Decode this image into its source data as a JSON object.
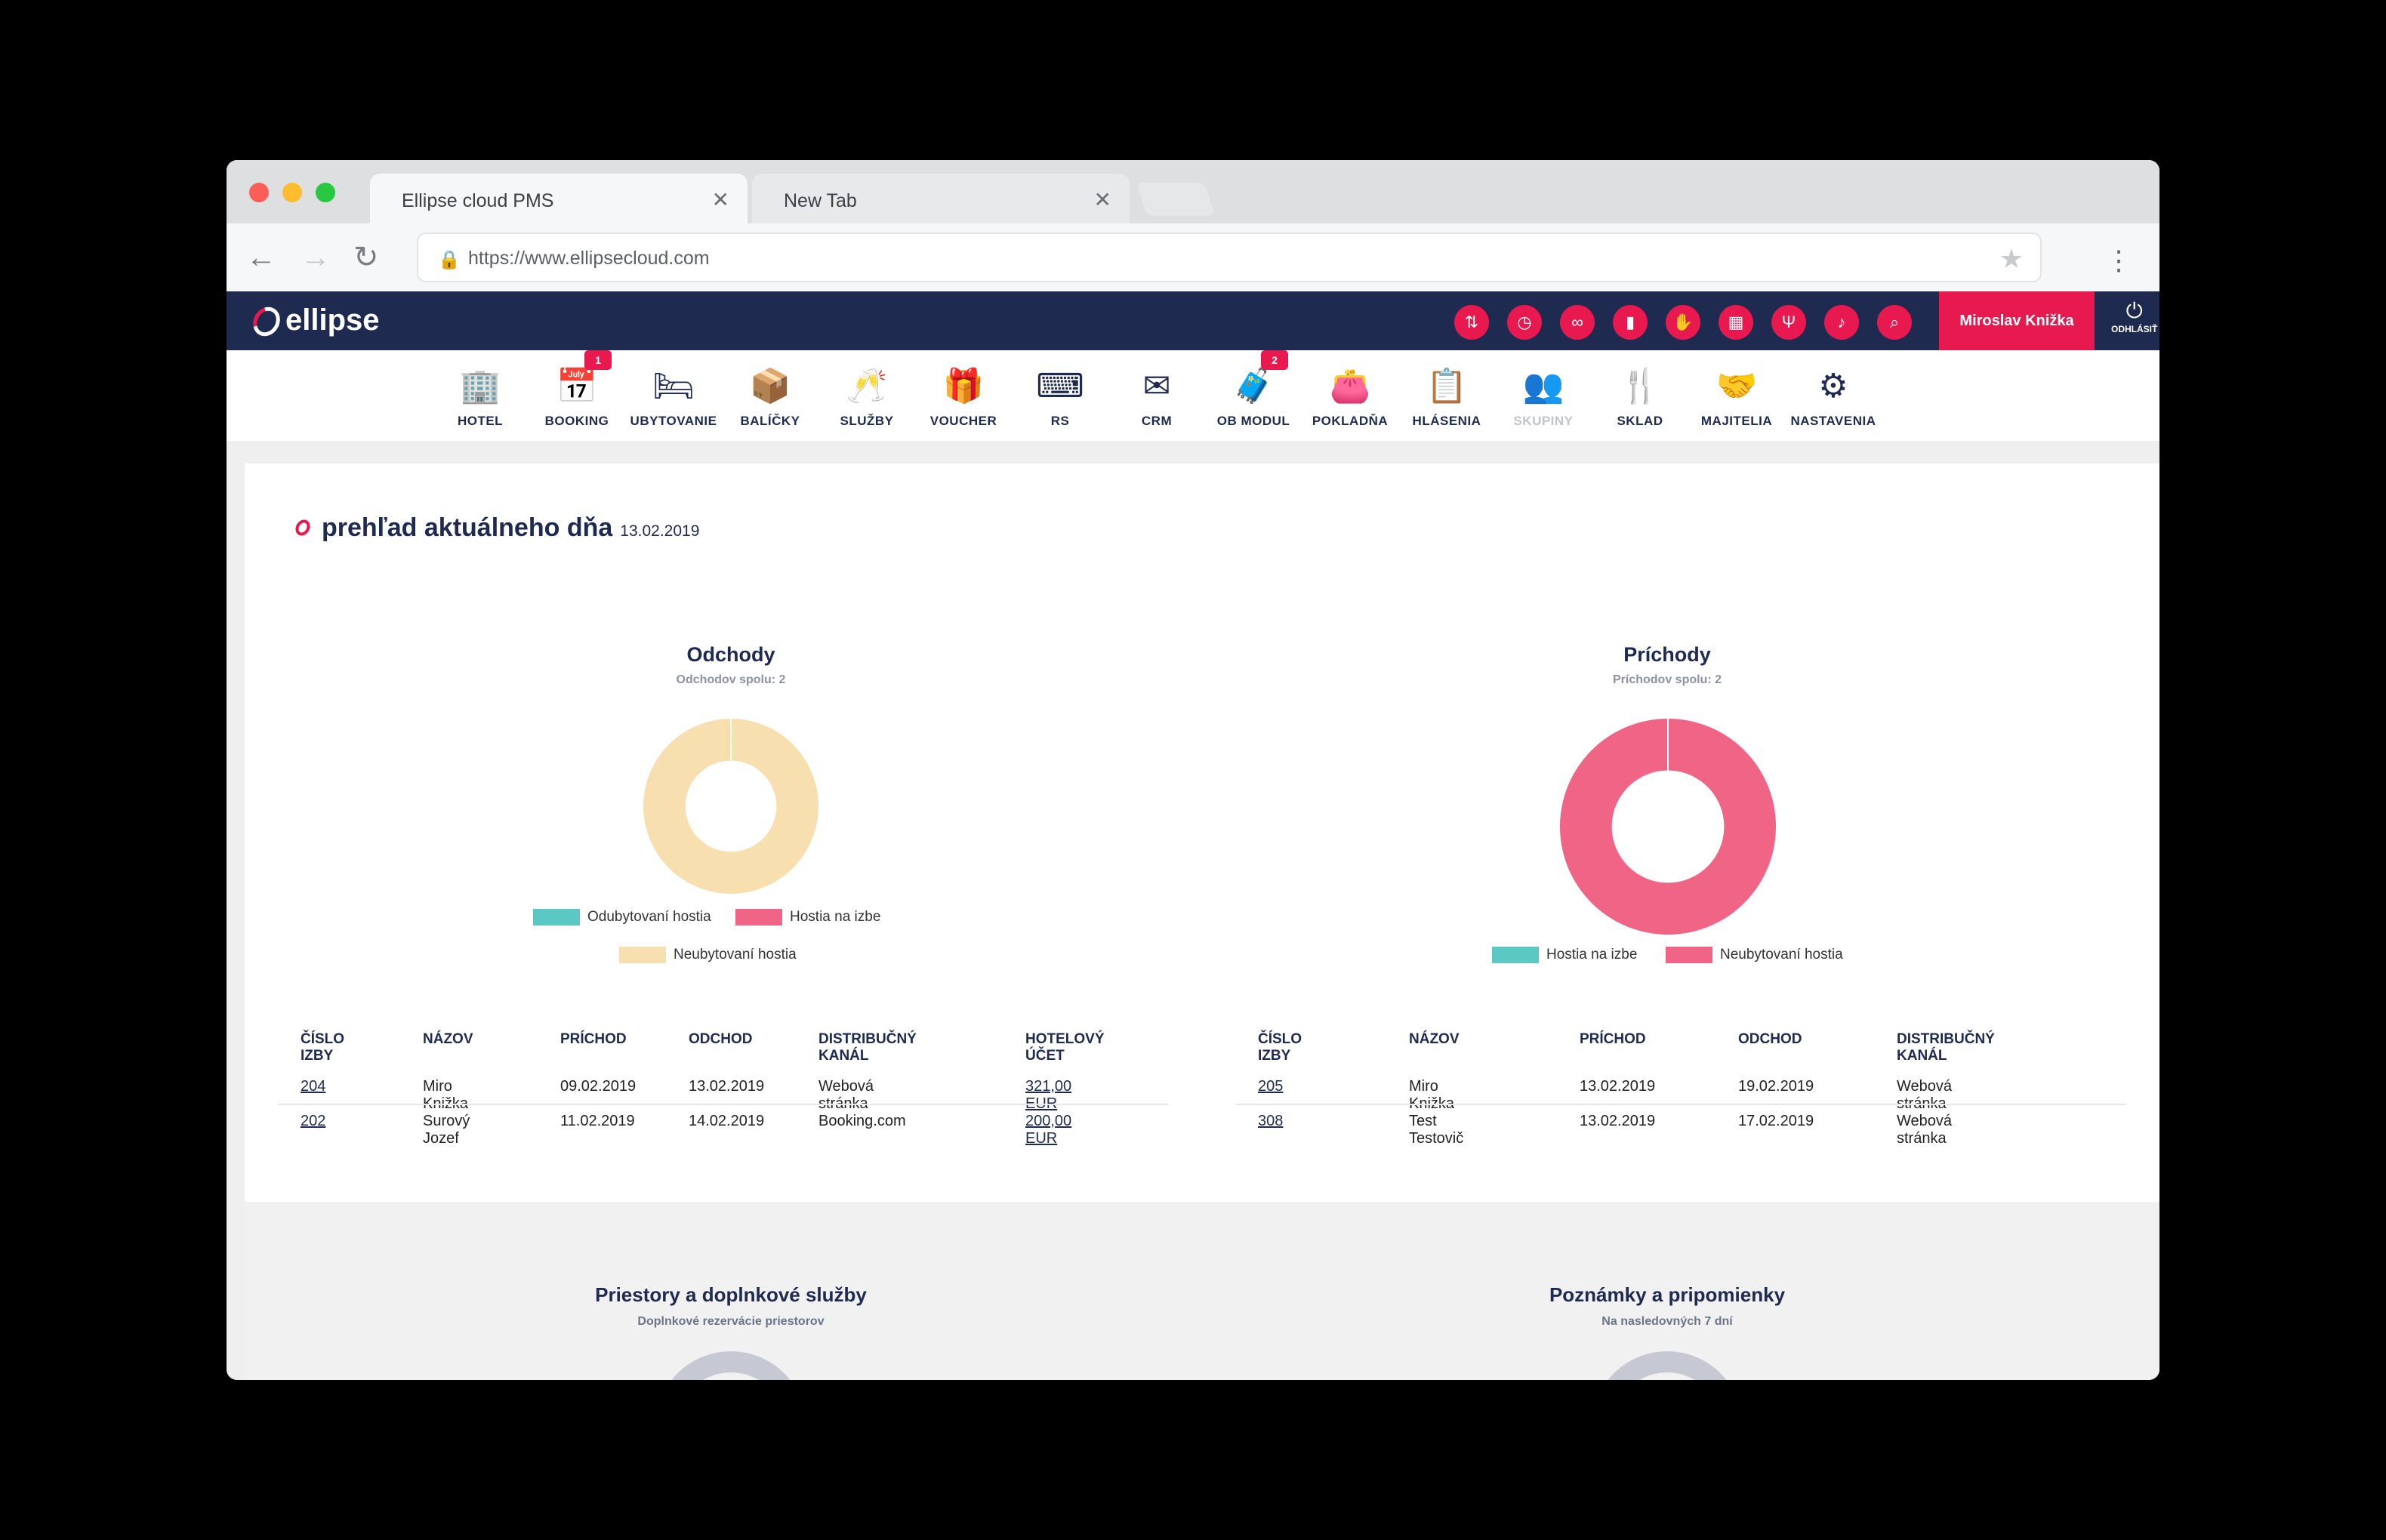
{
  "browser": {
    "tabs": [
      {
        "label": "Ellipse cloud PMS"
      },
      {
        "label": "New Tab"
      }
    ],
    "url": "https://www.ellipsecloud.com"
  },
  "app": {
    "logo": "ellipse",
    "user": "Miroslav Knižka",
    "logout": "ODHLÁSIŤ",
    "colors": {
      "brand": "#1e2a50",
      "accent": "#e8194f",
      "teal": "#5bc8c4",
      "peach": "#f8dfb0"
    }
  },
  "modules": [
    {
      "label": "HOTEL",
      "icon": "hotel-icon",
      "glyph": "🏢"
    },
    {
      "label": "BOOKING",
      "icon": "calendar-icon",
      "glyph": "📅",
      "badge": "1"
    },
    {
      "label": "UBYTOVANIE",
      "icon": "bed-icon",
      "glyph": "🛏"
    },
    {
      "label": "BALÍČKY",
      "icon": "package-icon",
      "glyph": "📦"
    },
    {
      "label": "SLUŽBY",
      "icon": "cheers-icon",
      "glyph": "🥂"
    },
    {
      "label": "VOUCHER",
      "icon": "gift-icon",
      "glyph": "🎁"
    },
    {
      "label": "RS",
      "icon": "code-window-icon",
      "glyph": "⌨"
    },
    {
      "label": "CRM",
      "icon": "envelope-icon",
      "glyph": "✉"
    },
    {
      "label": "OB MODUL",
      "icon": "traveler-icon",
      "glyph": "🧳",
      "badge": "2"
    },
    {
      "label": "POKLADŇA",
      "icon": "wallet-icon",
      "glyph": "👛"
    },
    {
      "label": "HLÁSENIA",
      "icon": "clipboard-icon",
      "glyph": "📋"
    },
    {
      "label": "SKUPINY",
      "icon": "group-icon",
      "glyph": "👥",
      "disabled": true
    },
    {
      "label": "SKLAD",
      "icon": "cutlery-icon",
      "glyph": "🍴"
    },
    {
      "label": "MAJITELIA",
      "icon": "handshake-icon",
      "glyph": "🤝"
    },
    {
      "label": "NASTAVENIA",
      "icon": "gears-icon",
      "glyph": "⚙"
    }
  ],
  "quick_icons": [
    "arrows-updown-icon",
    "clock-24-icon",
    "binoculars-icon",
    "bar-chart-icon",
    "hand-service-icon",
    "calendar-15-icon",
    "fork-icon",
    "bell-icon",
    "search-icon"
  ],
  "overview": {
    "title": "prehľad aktuálneho dňa",
    "date": "13.02.2019"
  },
  "chart_data": [
    {
      "type": "pie",
      "title": "Odchody",
      "subtitle": "Odchodov spolu: 2",
      "legend": [
        "Odubytovaní hostia",
        "Hostia na izbe",
        "Neubytovaní hostia"
      ],
      "colors": [
        "#5bc8c4",
        "#f06486",
        "#f8dfb0"
      ],
      "values": [
        0,
        0,
        2
      ]
    },
    {
      "type": "pie",
      "title": "Príchody",
      "subtitle": "Príchodov spolu: 2",
      "legend": [
        "Hostia na izbe",
        "Neubytovaní hostia"
      ],
      "colors": [
        "#5bc8c4",
        "#f06486"
      ],
      "values": [
        0,
        2
      ]
    }
  ],
  "departures_table": {
    "headers": [
      "ČÍSLO IZBY",
      "NÁZOV",
      "PRÍCHOD",
      "ODCHOD",
      "DISTRIBUČNÝ KANÁL",
      "HOTELOVÝ ÚČET"
    ],
    "rows": [
      [
        "204",
        "Miro Knižka",
        "09.02.2019",
        "13.02.2019",
        "Webová stránka",
        "321,00 EUR"
      ],
      [
        "202",
        "Surový Jozef",
        "11.02.2019",
        "14.02.2019",
        "Booking.com",
        "200,00 EUR"
      ]
    ]
  },
  "arrivals_table": {
    "headers": [
      "ČÍSLO IZBY",
      "NÁZOV",
      "PRÍCHOD",
      "ODCHOD",
      "DISTRIBUČNÝ KANÁL"
    ],
    "rows": [
      [
        "205",
        "Miro Knižka",
        "13.02.2019",
        "19.02.2019",
        "Webová stránka"
      ],
      [
        "308",
        "Test Testovič",
        "13.02.2019",
        "17.02.2019",
        "Webová stránka"
      ]
    ]
  },
  "sections": [
    {
      "title": "Priestory a doplnkové služby",
      "subtitle": "Doplnkové rezervácie priestorov"
    },
    {
      "title": "Poznámky a pripomienky",
      "subtitle": "Na nasledovných 7 dní"
    }
  ]
}
